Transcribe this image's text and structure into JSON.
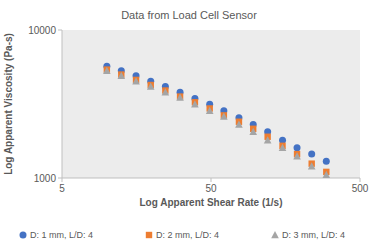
{
  "chart_data": {
    "type": "scatter",
    "title": "Data from Load Cell Sensor",
    "x_label": "Log Apparent Shear Rate (1/s)",
    "y_label": "Log Apparent Viscosity (Pa-s)",
    "log": true,
    "grid": false,
    "legend": "bottom",
    "x": [
      10,
      12.5,
      15.7,
      19.7,
      24.7,
      31,
      39,
      49,
      61,
      77,
      96,
      120,
      151,
      189,
      237,
      297
    ],
    "series": [
      {
        "name": "D: 1 mm, L/D: 4",
        "color": "#4472c4",
        "marker": "circle",
        "values": [
          5700,
          5300,
          4900,
          4500,
          4150,
          3800,
          3450,
          3150,
          2850,
          2550,
          2300,
          2050,
          1800,
          1600,
          1450,
          1300
        ]
      },
      {
        "name": "D: 2 mm, L/D: 4",
        "color": "#ed7d31",
        "marker": "square",
        "values": [
          5400,
          5000,
          4600,
          4250,
          3900,
          3550,
          3250,
          2950,
          2650,
          2400,
          2150,
          1900,
          1650,
          1450,
          1250,
          1100
        ]
      },
      {
        "name": "D: 3 mm, L/D: 4",
        "color": "#a5a5a5",
        "marker": "triangle",
        "values": [
          5300,
          4900,
          4500,
          4150,
          3800,
          3500,
          3150,
          2850,
          2600,
          2300,
          2050,
          1800,
          1600,
          1400,
          1200,
          1050
        ]
      }
    ],
    "xlim": [
      5,
      500
    ],
    "xticks": [
      5,
      50,
      500
    ],
    "ylim": [
      1000,
      10000
    ],
    "yticks": [
      1000,
      10000
    ]
  }
}
